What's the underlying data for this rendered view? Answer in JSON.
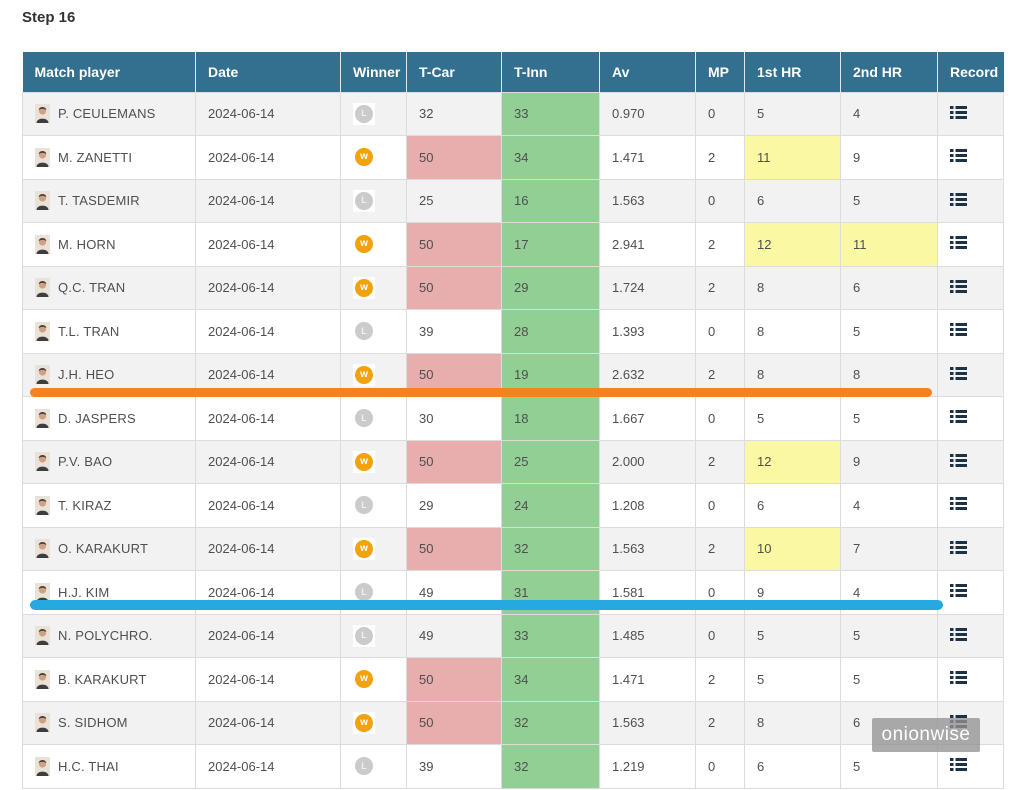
{
  "page": {
    "title": "Step 16"
  },
  "table": {
    "headers": [
      "Match player",
      "Date",
      "Winner",
      "T-Car",
      "T-Inn",
      "Av",
      "MP",
      "1st HR",
      "2nd HR",
      "Record"
    ],
    "badge_labels": {
      "W": "w",
      "L": "L"
    },
    "rows": [
      {
        "player": "P. CEULEMANS",
        "date": "2024-06-14",
        "winner": "L",
        "t_car": "32",
        "t_car_highlight": false,
        "t_inn": "33",
        "av": "0.970",
        "mp": "0",
        "hr1": "5",
        "hr1_highlight": false,
        "hr2": "4",
        "hr2_highlight": false
      },
      {
        "player": "M. ZANETTI",
        "date": "2024-06-14",
        "winner": "W",
        "t_car": "50",
        "t_car_highlight": true,
        "t_inn": "34",
        "av": "1.471",
        "mp": "2",
        "hr1": "11",
        "hr1_highlight": true,
        "hr2": "9",
        "hr2_highlight": false
      },
      {
        "player": "T. TASDEMIR",
        "date": "2024-06-14",
        "winner": "L",
        "t_car": "25",
        "t_car_highlight": false,
        "t_inn": "16",
        "av": "1.563",
        "mp": "0",
        "hr1": "6",
        "hr1_highlight": false,
        "hr2": "5",
        "hr2_highlight": false
      },
      {
        "player": "M. HORN",
        "date": "2024-06-14",
        "winner": "W",
        "t_car": "50",
        "t_car_highlight": true,
        "t_inn": "17",
        "av": "2.941",
        "mp": "2",
        "hr1": "12",
        "hr1_highlight": true,
        "hr2": "11",
        "hr2_highlight": true
      },
      {
        "player": "Q.C. TRAN",
        "date": "2024-06-14",
        "winner": "W",
        "t_car": "50",
        "t_car_highlight": true,
        "t_inn": "29",
        "av": "1.724",
        "mp": "2",
        "hr1": "8",
        "hr1_highlight": false,
        "hr2": "6",
        "hr2_highlight": false
      },
      {
        "player": "T.L. TRAN",
        "date": "2024-06-14",
        "winner": "L",
        "t_car": "39",
        "t_car_highlight": false,
        "t_inn": "28",
        "av": "1.393",
        "mp": "0",
        "hr1": "8",
        "hr1_highlight": false,
        "hr2": "5",
        "hr2_highlight": false
      },
      {
        "player": "J.H. HEO",
        "date": "2024-06-14",
        "winner": "W",
        "t_car": "50",
        "t_car_highlight": true,
        "t_inn": "19",
        "av": "2.632",
        "mp": "2",
        "hr1": "8",
        "hr1_highlight": false,
        "hr2": "8",
        "hr2_highlight": false
      },
      {
        "player": "D. JASPERS",
        "date": "2024-06-14",
        "winner": "L",
        "t_car": "30",
        "t_car_highlight": false,
        "t_inn": "18",
        "av": "1.667",
        "mp": "0",
        "hr1": "5",
        "hr1_highlight": false,
        "hr2": "5",
        "hr2_highlight": false
      },
      {
        "player": "P.V. BAO",
        "date": "2024-06-14",
        "winner": "W",
        "t_car": "50",
        "t_car_highlight": true,
        "t_inn": "25",
        "av": "2.000",
        "mp": "2",
        "hr1": "12",
        "hr1_highlight": true,
        "hr2": "9",
        "hr2_highlight": false
      },
      {
        "player": "T. KIRAZ",
        "date": "2024-06-14",
        "winner": "L",
        "t_car": "29",
        "t_car_highlight": false,
        "t_inn": "24",
        "av": "1.208",
        "mp": "0",
        "hr1": "6",
        "hr1_highlight": false,
        "hr2": "4",
        "hr2_highlight": false
      },
      {
        "player": "O. KARAKURT",
        "date": "2024-06-14",
        "winner": "W",
        "t_car": "50",
        "t_car_highlight": true,
        "t_inn": "32",
        "av": "1.563",
        "mp": "2",
        "hr1": "10",
        "hr1_highlight": true,
        "hr2": "7",
        "hr2_highlight": false
      },
      {
        "player": "H.J. KIM",
        "date": "2024-06-14",
        "winner": "L",
        "t_car": "49",
        "t_car_highlight": false,
        "t_inn": "31",
        "av": "1.581",
        "mp": "0",
        "hr1": "9",
        "hr1_highlight": false,
        "hr2": "4",
        "hr2_highlight": false
      },
      {
        "player": "N. POLYCHRO.",
        "date": "2024-06-14",
        "winner": "L",
        "t_car": "49",
        "t_car_highlight": false,
        "t_inn": "33",
        "av": "1.485",
        "mp": "0",
        "hr1": "5",
        "hr1_highlight": false,
        "hr2": "5",
        "hr2_highlight": false
      },
      {
        "player": "B. KARAKURT",
        "date": "2024-06-14",
        "winner": "W",
        "t_car": "50",
        "t_car_highlight": true,
        "t_inn": "34",
        "av": "1.471",
        "mp": "2",
        "hr1": "5",
        "hr1_highlight": false,
        "hr2": "5",
        "hr2_highlight": false
      },
      {
        "player": "S. SIDHOM",
        "date": "2024-06-14",
        "winner": "W",
        "t_car": "50",
        "t_car_highlight": true,
        "t_inn": "32",
        "av": "1.563",
        "mp": "2",
        "hr1": "8",
        "hr1_highlight": false,
        "hr2": "6",
        "hr2_highlight": false
      },
      {
        "player": "H.C. THAI",
        "date": "2024-06-14",
        "winner": "L",
        "t_car": "39",
        "t_car_highlight": false,
        "t_inn": "32",
        "av": "1.219",
        "mp": "0",
        "hr1": "6",
        "hr1_highlight": false,
        "hr2": "5",
        "hr2_highlight": false
      }
    ]
  },
  "overlays": {
    "orange_bar": {
      "after_player": "J.H. HEO",
      "color": "#f58220"
    },
    "blue_bar": {
      "after_player": "H.J. KIM",
      "color": "#25a9e0"
    },
    "watermark": {
      "text": "onionwise"
    }
  },
  "colors": {
    "header_bg": "#336f8f",
    "row_alt_bg": "#f2f2f2",
    "t_inn_green": "#92cf94",
    "t_car_pink": "#e8adad",
    "hr_yellow": "#fbf8a3",
    "win_badge": "#f2a20d",
    "loss_badge": "#cbcbcb",
    "record_icon": "#1d3147"
  }
}
